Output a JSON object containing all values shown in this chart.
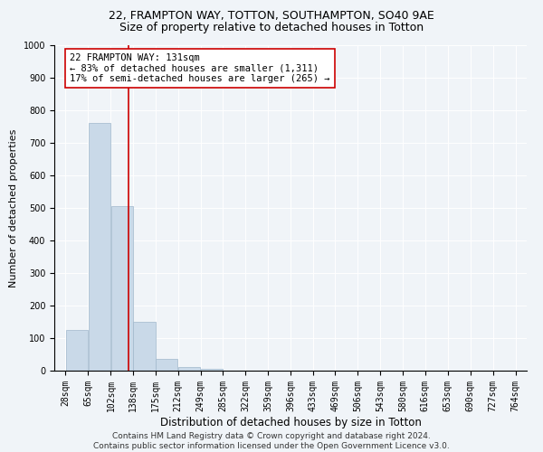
{
  "title_line1": "22, FRAMPTON WAY, TOTTON, SOUTHAMPTON, SO40 9AE",
  "title_line2": "Size of property relative to detached houses in Totton",
  "xlabel": "Distribution of detached houses by size in Totton",
  "ylabel": "Number of detached properties",
  "bar_edges": [
    28,
    65,
    102,
    138,
    175,
    212,
    249,
    285,
    322,
    359,
    396,
    433,
    469,
    506,
    543,
    580,
    616,
    653,
    690,
    727,
    764
  ],
  "bar_heights": [
    125,
    760,
    505,
    150,
    35,
    12,
    5,
    0,
    0,
    0,
    0,
    0,
    0,
    0,
    0,
    0,
    0,
    0,
    0,
    0
  ],
  "bar_color": "#c9d9e8",
  "bar_edgecolor": "#a0b8cc",
  "property_size": 131,
  "red_line_color": "#cc0000",
  "annotation_line1": "22 FRAMPTON WAY: 131sqm",
  "annotation_line2": "← 83% of detached houses are smaller (1,311)",
  "annotation_line3": "17% of semi-detached houses are larger (265) →",
  "annotation_box_color": "#ffffff",
  "annotation_box_edgecolor": "#cc0000",
  "ylim": [
    0,
    1000
  ],
  "yticks": [
    0,
    100,
    200,
    300,
    400,
    500,
    600,
    700,
    800,
    900,
    1000
  ],
  "bg_color": "#f0f4f8",
  "plot_bg_color": "#f0f4f8",
  "footer_line1": "Contains HM Land Registry data © Crown copyright and database right 2024.",
  "footer_line2": "Contains public sector information licensed under the Open Government Licence v3.0.",
  "title_fontsize": 9,
  "subtitle_fontsize": 9,
  "xlabel_fontsize": 8.5,
  "ylabel_fontsize": 8,
  "tick_fontsize": 7,
  "annotation_fontsize": 7.5,
  "footer_fontsize": 6.5
}
